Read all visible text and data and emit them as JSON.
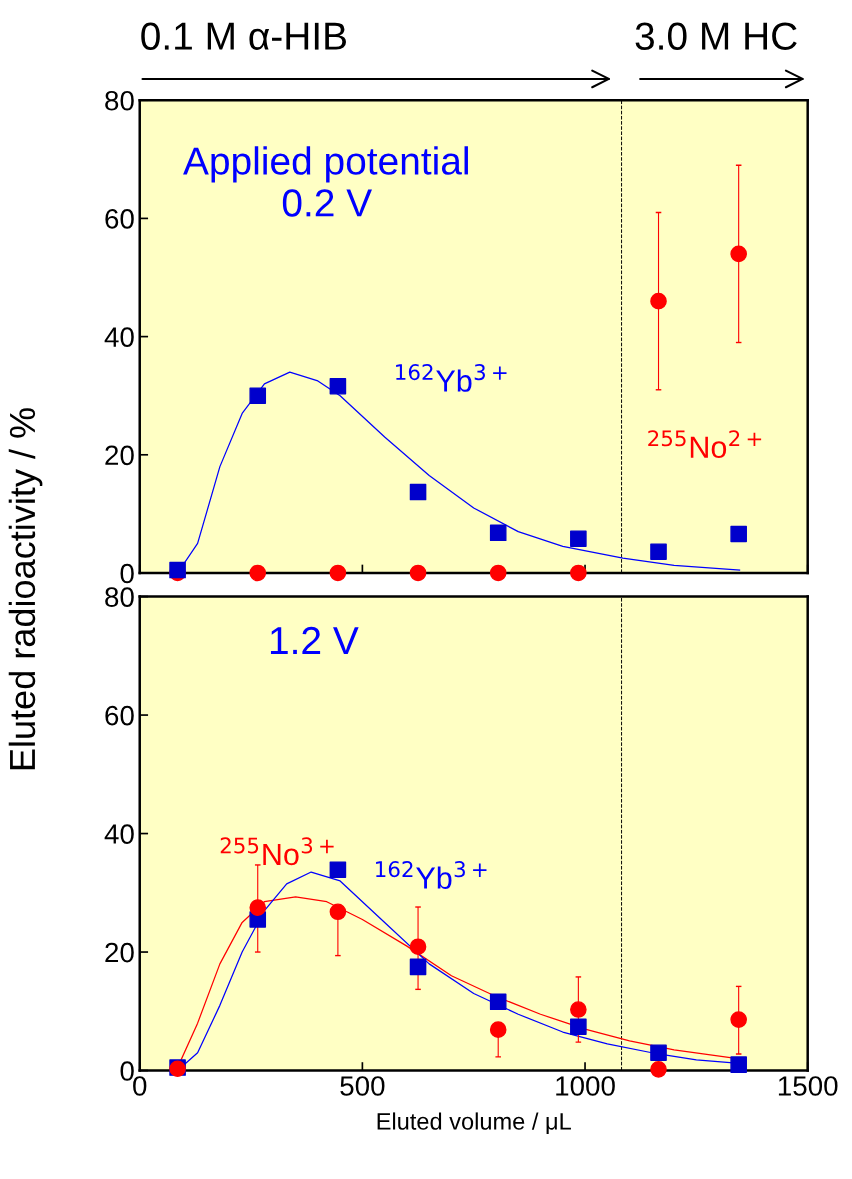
{
  "chart_data": [
    {
      "type": "scatter",
      "ylabel": "Eluted radioactivity / %",
      "xlim": [
        0,
        1500
      ],
      "ylim": [
        0,
        80
      ],
      "xticks": [
        0,
        500,
        1000,
        1500
      ],
      "yticks": [
        0,
        20,
        40,
        60,
        80
      ],
      "tick_labels": "y",
      "grid": false,
      "annotations": [
        "0.1 M α-HIB",
        "3.0 M HC",
        "Applied potential\n0.2 V",
        "$^{162}$Yb$^{3+}$",
        "$^{255}$No$^{2+}$"
      ],
      "ref_lines": [
        {
          "axis": "x",
          "value": 1082,
          "color": "#000000",
          "line_style": "dashed"
        }
      ],
      "series": [
        {
          "type": "line",
          "color": "#0000ff",
          "marker": "none",
          "x": [
            85,
            130,
            180,
            230,
            280,
            337,
            400,
            450,
            550,
            650,
            750,
            850,
            950,
            1085,
            1200,
            1347
          ],
          "values": [
            0,
            5,
            18,
            27,
            32,
            34,
            32.5,
            30,
            23,
            16.5,
            11,
            7,
            4.5,
            2.5,
            1.3,
            0.5
          ]
        },
        {
          "color": "#ff0000",
          "marker": "circle",
          "x": [
            85,
            265,
            445,
            625,
            805,
            985,
            1165,
            1345
          ],
          "values": [
            0,
            0,
            0,
            0,
            0,
            0,
            46,
            54
          ],
          "errors": [
            null,
            null,
            null,
            null,
            null,
            null,
            [
              31,
              61
            ],
            [
              39,
              69
            ]
          ]
        },
        {
          "color": "#0000cc",
          "marker": "square",
          "x": [
            85,
            265,
            445,
            625,
            805,
            985,
            1165,
            1345
          ],
          "values": [
            0.5,
            30,
            31.6,
            13.7,
            6.8,
            5.8,
            3.6,
            6.6
          ]
        }
      ]
    },
    {
      "type": "scatter",
      "xlabel": "Eluted volume / μL",
      "xlim": [
        0,
        1500
      ],
      "ylim": [
        0,
        80
      ],
      "xticks": [
        0,
        500,
        1000,
        1500
      ],
      "yticks": [
        0,
        20,
        40,
        60,
        80
      ],
      "grid": false,
      "annotations": [
        "1.2 V",
        "$^{255}$No$^{3+}$",
        "$^{162}$Yb$^{3+}$"
      ],
      "ref_lines": [
        {
          "axis": "x",
          "value": 1082,
          "color": "#000000",
          "line_style": "dashed"
        }
      ],
      "series": [
        {
          "type": "line",
          "color": "#ff0000",
          "marker": "none",
          "x": [
            85,
            130,
            180,
            230,
            280,
            350,
            420,
            500,
            600,
            700,
            800,
            900,
            1000,
            1100,
            1200,
            1345
          ],
          "values": [
            0.5,
            8,
            18,
            25,
            28.5,
            29.3,
            28.5,
            25.5,
            21,
            16,
            12.5,
            9.5,
            7,
            5,
            3.5,
            2
          ]
        },
        {
          "type": "line",
          "color": "#0000ff",
          "marker": "none",
          "x": [
            85,
            130,
            180,
            230,
            280,
            330,
            385,
            450,
            550,
            650,
            750,
            850,
            950,
            1050,
            1150,
            1250,
            1345
          ],
          "values": [
            0,
            3,
            11,
            20,
            27,
            31.5,
            33.5,
            32,
            25,
            18,
            13,
            9.5,
            6.5,
            4.5,
            3,
            1.8,
            1.2
          ]
        },
        {
          "color": "#0000cc",
          "marker": "square",
          "x": [
            85,
            265,
            445,
            625,
            805,
            985,
            1165,
            1345
          ],
          "values": [
            0.5,
            25.5,
            33.9,
            17.5,
            11.6,
            7.4,
            3,
            1
          ]
        },
        {
          "color": "#ff0000",
          "marker": "circle",
          "x": [
            85,
            265,
            445,
            625,
            805,
            985,
            1165,
            1345
          ],
          "values": [
            0.3,
            27.5,
            26.8,
            20.9,
            6.9,
            10.3,
            0.2,
            8.6
          ],
          "errors": [
            null,
            [
              20,
              34.7
            ],
            [
              19.4,
              26.8
            ],
            [
              13.7,
              27.6
            ],
            [
              2.3,
              6.9
            ],
            [
              4.8,
              15.8
            ],
            null,
            [
              2.8,
              14.2
            ]
          ]
        }
      ]
    }
  ]
}
